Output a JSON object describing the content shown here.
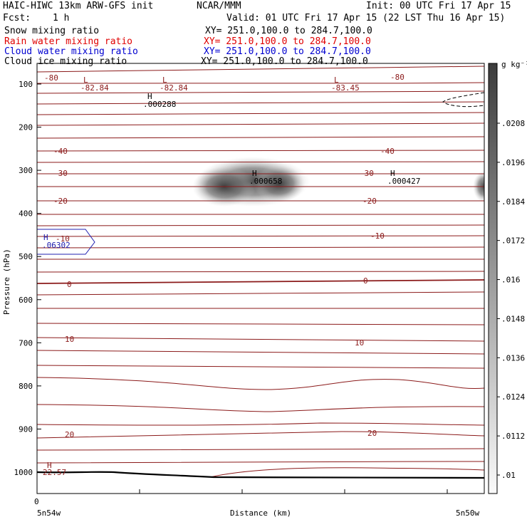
{
  "header": {
    "title": "HAIC-HIWC 13km ARW-GFS init",
    "org": "NCAR/MMM",
    "init": "Init: 00 UTC Fri 17 Apr 15",
    "fcst_label": "Fcst:",
    "fcst_value": "1 h",
    "valid": "Valid: 01 UTC Fri 17 Apr 15 (22 LST Thu 16 Apr 15)",
    "fields": [
      {
        "name": "Snow mixing ratio",
        "xy": "XY= 251.0,100.0 to 284.7,100.0",
        "color": "#000000"
      },
      {
        "name": "Rain water mixing ratio",
        "xy": "XY= 251.0,100.0 to 284.7,100.0",
        "color": "#e00000"
      },
      {
        "name": "Cloud water mixing ratio",
        "xy": "XY= 251.0,100.0 to 284.7,100.0",
        "color": "#0000d0"
      },
      {
        "name": "Cloud ice mixing ratio",
        "xy": "XY= 251.0,100.0 to 284.7,100.0",
        "color": "#000000"
      }
    ]
  },
  "chart_data": {
    "type": "contour-cross-section",
    "xlabel": "Distance (km)",
    "ylabel": "Pressure (hPa)",
    "x_left_label": "5n54w",
    "x_right_label": "5n50w",
    "x_origin_label": "0",
    "ylim": [
      1050,
      50
    ],
    "y_ticks": [
      100,
      200,
      300,
      400,
      500,
      600,
      700,
      800,
      900,
      1000
    ],
    "colorbar": {
      "unit": "g kg⁻¹",
      "ticks": [
        ".0208",
        ".0196",
        ".0184",
        ".0172",
        ".016",
        ".0148",
        ".0136",
        ".0124",
        ".0112",
        ".01"
      ]
    },
    "temperature_labels": [
      "-80",
      "-40",
      "-30",
      "-20",
      "-10",
      "0",
      "10",
      "20"
    ],
    "extrema": [
      {
        "type": "L",
        "value": "-82.84"
      },
      {
        "type": "L",
        "value": "-82.84"
      },
      {
        "type": "L",
        "value": "-83.45"
      },
      {
        "type": "H",
        "value": ".000288"
      },
      {
        "type": "H",
        "value": ".000658"
      },
      {
        "type": "H",
        "value": ".000427"
      },
      {
        "type": "H",
        "value": ".06302"
      },
      {
        "type": "H",
        "value": "22.57"
      }
    ],
    "colors": {
      "isotherm": "#8b1a1a",
      "cloud_water": "#2020b0",
      "shade_dark": "#444444"
    }
  }
}
